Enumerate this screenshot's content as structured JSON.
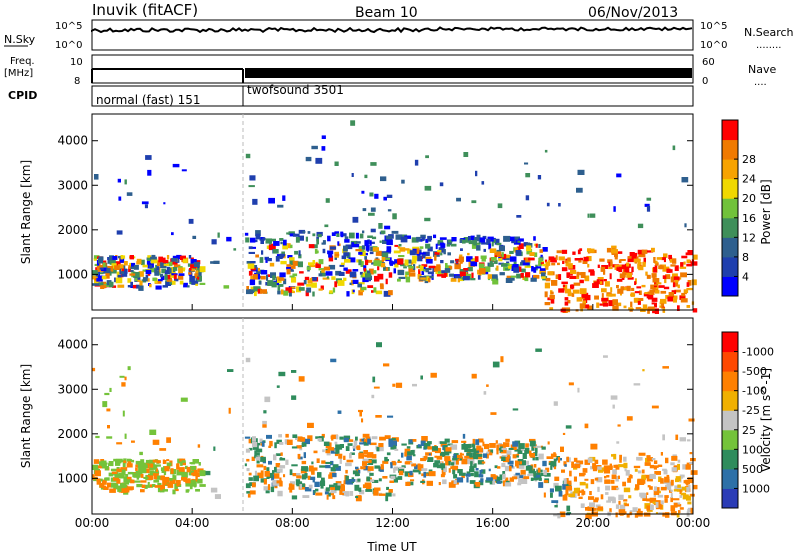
{
  "header": {
    "station": "Inuvik (fitACF)",
    "beam": "Beam 10",
    "date": "06/Nov/2013"
  },
  "aux_panels": {
    "nsky_label": "N.Sky",
    "nsearch_label": "N.Search",
    "nsearch_legend": "........",
    "freq_label_1": "Freq.",
    "freq_label_2": "[MHz]",
    "nave_label": "Nave",
    "nave_legend": "....",
    "cpid_label": "CPID",
    "nsky_ticks": {
      "top": "10^5",
      "bottom": "10^0"
    },
    "nsearch_ticks": {
      "top": "10^5",
      "bottom": "10^0"
    },
    "freq_ticks": {
      "top": "10",
      "bottom": "8"
    },
    "nave_ticks": {
      "top": "60",
      "bottom": "0"
    },
    "cpid_modes": [
      {
        "label": "normal (fast) 151",
        "start_hour": 0,
        "end_hour": 6
      },
      {
        "label": "twofsound 3501",
        "start_hour": 6,
        "end_hour": 24
      }
    ]
  },
  "colors": {
    "power": [
      "#0000ff",
      "#1f3fae",
      "#2e5f8e",
      "#3f8f5a",
      "#71c23a",
      "#f0d800",
      "#f7a300",
      "#f07a00",
      "#ff0000"
    ],
    "velocity": [
      "#2b3cb6",
      "#2d70a8",
      "#2f8c5c",
      "#74c33a",
      "#c4c4c4",
      "#f0b000",
      "#ff8000",
      "#ff4800",
      "#ff0000"
    ]
  },
  "chart_data": [
    {
      "type": "heatmap",
      "name": "power",
      "title": "",
      "xlabel": "",
      "ylabel": "Slant Range [km]",
      "xlim": [
        0,
        24
      ],
      "ylim": [
        200,
        4600
      ],
      "x_ticks": [
        "00:00",
        "04:00",
        "08:00",
        "12:00",
        "16:00",
        "20:00",
        "00:00"
      ],
      "y_ticks": [
        1000,
        2000,
        3000,
        4000
      ],
      "colorbar": {
        "label": "Power [dB]",
        "ticks": [
          4,
          8,
          12,
          16,
          20,
          24,
          28
        ]
      }
    },
    {
      "type": "heatmap",
      "name": "velocity",
      "title": "",
      "xlabel": "Time UT",
      "ylabel": "Slant Range [km]",
      "xlim": [
        0,
        24
      ],
      "ylim": [
        200,
        4600
      ],
      "x_ticks": [
        "00:00",
        "04:00",
        "08:00",
        "12:00",
        "16:00",
        "20:00",
        "00:00"
      ],
      "y_ticks": [
        1000,
        2000,
        3000,
        4000
      ],
      "colorbar": {
        "label": "Velocity [m s^-1]",
        "ticks": [
          1000,
          500,
          100,
          25,
          -25,
          -100,
          -500,
          -1000
        ]
      }
    }
  ]
}
